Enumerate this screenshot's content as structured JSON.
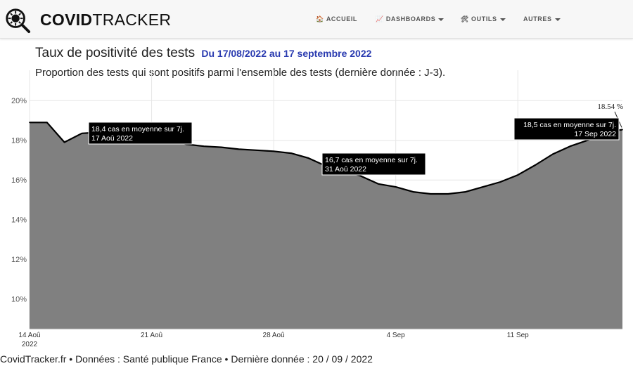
{
  "brand": {
    "bold": "COVID",
    "light": "TRACKER"
  },
  "nav": [
    {
      "label": "ACCUEIL",
      "icon": "🏠",
      "caret": false
    },
    {
      "label": "DASHBOARDS",
      "icon": "📈",
      "caret": true
    },
    {
      "label": "OUTILS",
      "icon": "🛠",
      "caret": true
    },
    {
      "label": "AUTRES",
      "icon": "",
      "caret": true
    }
  ],
  "header": {
    "title": "Taux de positivité des tests",
    "date_range": "Du 17/08/2022 au 17 septembre 2022",
    "subtitle": "Proportion des tests qui sont positifs parmi l'ensemble des tests (dernière donnée : J-3)."
  },
  "footer": {
    "text": "CovidTracker.fr • Données : Santé publique France • Dernière donnée : 20 / 09 / 2022"
  },
  "colors": {
    "area_fill": "#808080",
    "line": "#000000",
    "tooltip_bg": "#000000",
    "date_accent": "#2a3bb0"
  },
  "chart_data": {
    "type": "area",
    "title": "Taux de positivité des tests",
    "ylim": [
      8.5,
      21
    ],
    "yticks": [
      10,
      12,
      14,
      16,
      18,
      20
    ],
    "ytick_labels": [
      "10%",
      "12%",
      "14%",
      "16%",
      "18%",
      "20%"
    ],
    "xticks": [
      {
        "day": 0,
        "label": "14 Aoû",
        "sublabel": "2022"
      },
      {
        "day": 7,
        "label": "21 Aoû",
        "sublabel": ""
      },
      {
        "day": 14,
        "label": "28 Aoû",
        "sublabel": ""
      },
      {
        "day": 21,
        "label": "4 Sep",
        "sublabel": ""
      },
      {
        "day": 28,
        "label": "11 Sep",
        "sublabel": ""
      }
    ],
    "x_start": "2022-08-14",
    "x_end": "2022-09-17",
    "grid": true,
    "series": [
      {
        "x": [
          "2022-08-14",
          "2022-08-15",
          "2022-08-16",
          "2022-08-17",
          "2022-08-18",
          "2022-08-19",
          "2022-08-20",
          "2022-08-21",
          "2022-08-22",
          "2022-08-23",
          "2022-08-24",
          "2022-08-25",
          "2022-08-26",
          "2022-08-27",
          "2022-08-28",
          "2022-08-29",
          "2022-08-30",
          "2022-08-31",
          "2022-09-01",
          "2022-09-02",
          "2022-09-03",
          "2022-09-04",
          "2022-09-05",
          "2022-09-06",
          "2022-09-07",
          "2022-09-08",
          "2022-09-09",
          "2022-09-10",
          "2022-09-11",
          "2022-09-12",
          "2022-09-13",
          "2022-09-14",
          "2022-09-15",
          "2022-09-16",
          "2022-09-17"
        ],
        "values": [
          18.9,
          18.9,
          17.9,
          18.35,
          18.4,
          18.45,
          18.4,
          18.35,
          18.1,
          17.8,
          17.7,
          17.65,
          17.55,
          17.5,
          17.45,
          17.35,
          17.1,
          16.7,
          16.5,
          16.2,
          15.8,
          15.65,
          15.4,
          15.3,
          15.3,
          15.4,
          15.65,
          15.9,
          16.25,
          16.75,
          17.3,
          17.7,
          18.0,
          18.4,
          18.54
        ]
      }
    ],
    "annotations": [
      {
        "text": "18.54 %"
      },
      {
        "line1": "18,4 cas en moyenne sur 7j.",
        "line2": "17 Aoû 2022"
      },
      {
        "line1": "16,7 cas en moyenne sur 7j.",
        "line2": "31 Aoû 2022"
      },
      {
        "line1": "18,5 cas en moyenne sur 7j.",
        "line2": "17 Sep 2022"
      }
    ]
  }
}
